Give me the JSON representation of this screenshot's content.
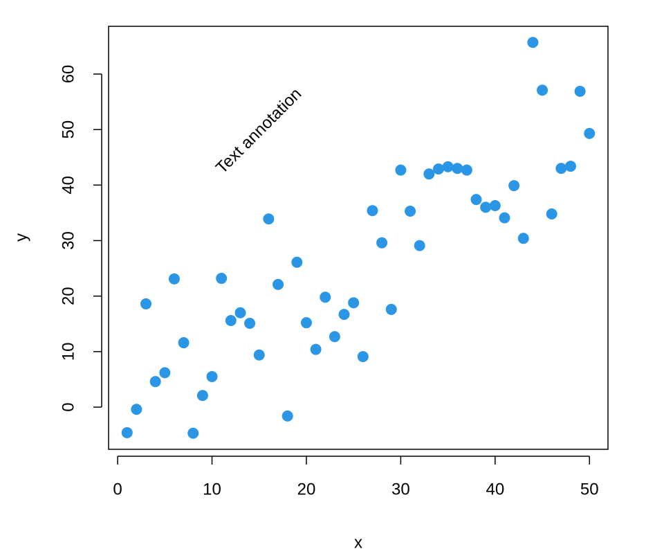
{
  "chart_data": {
    "type": "scatter",
    "x_label": "x",
    "y_label": "y",
    "annotation": "Text annotation",
    "color": "#2b96e6",
    "x": [
      1,
      2,
      3,
      4,
      5,
      6,
      7,
      8,
      9,
      10,
      11,
      12,
      13,
      14,
      15,
      16,
      17,
      18,
      19,
      20,
      21,
      22,
      23,
      24,
      25,
      26,
      27,
      28,
      29,
      30,
      31,
      32,
      33,
      34,
      35,
      36,
      37,
      38,
      39,
      40,
      41,
      42,
      43,
      44,
      45,
      46,
      47,
      48,
      49,
      50
    ],
    "values": [
      -4.6,
      -0.4,
      18.6,
      4.6,
      6.2,
      23.1,
      11.6,
      -4.7,
      2.1,
      5.5,
      23.2,
      15.6,
      17.0,
      15.1,
      9.4,
      33.9,
      22.1,
      -1.6,
      26.1,
      15.2,
      10.4,
      19.8,
      12.7,
      16.7,
      18.8,
      9.1,
      35.4,
      29.6,
      17.6,
      42.7,
      35.3,
      29.1,
      42.0,
      42.9,
      43.3,
      43.0,
      42.7,
      37.4,
      36.0,
      36.3,
      34.1,
      39.9,
      30.4,
      65.7,
      57.1,
      34.8,
      43.0,
      43.4,
      56.9,
      49.3
    ],
    "xlim": [
      -0.96,
      51.96
    ],
    "ylim": [
      -7.6,
      68.6
    ],
    "xticks": [
      0,
      10,
      20,
      30,
      40,
      50
    ],
    "yticks": [
      0,
      10,
      20,
      30,
      40,
      50,
      60
    ]
  }
}
